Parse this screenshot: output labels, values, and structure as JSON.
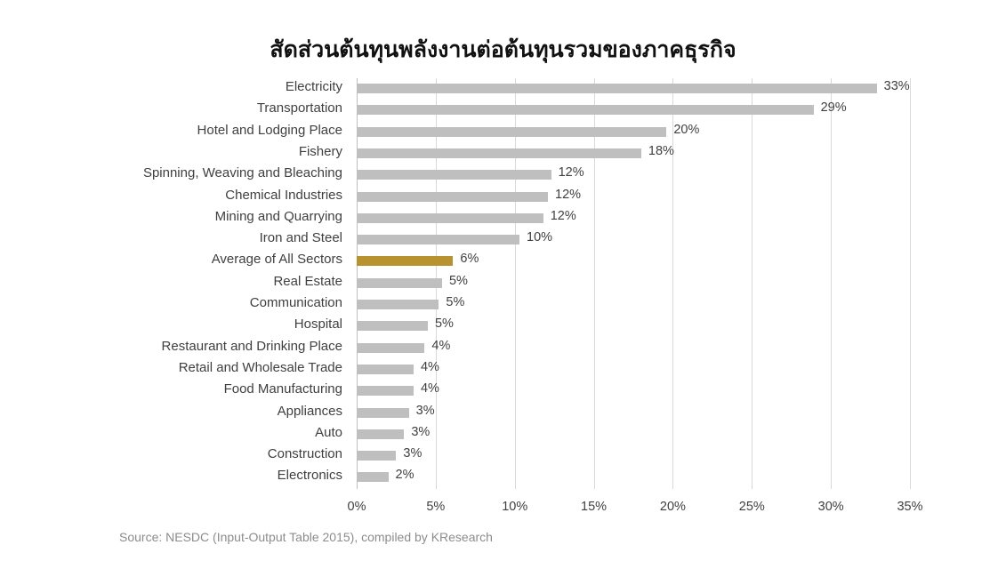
{
  "title": "สัดส่วนต้นทุนพลังงานต่อต้นทุนรวมของภาคธุรกิจ",
  "source": "Source: NESDC (Input-Output Table 2015), compiled by KResearch",
  "colors": {
    "bar": "#bfbfbf",
    "highlight": "#b8922e",
    "grid": "#d9d9d9"
  },
  "chart_data": {
    "type": "bar",
    "orientation": "horizontal",
    "title": "สัดส่วนต้นทุนพลังงานต่อต้นทุนรวมของภาคธุรกิจ",
    "xlabel": "",
    "ylabel": "",
    "xlim": [
      0,
      35
    ],
    "x_ticks": [
      "0%",
      "5%",
      "10%",
      "15%",
      "20%",
      "25%",
      "30%",
      "35%"
    ],
    "grid": true,
    "legend": null,
    "highlight_category": "Average of All Sectors",
    "categories": [
      "Electricity",
      "Transportation",
      "Hotel and Lodging Place",
      "Fishery",
      "Spinning, Weaving and Bleaching",
      "Chemical Industries",
      "Mining and Quarrying",
      "Iron and Steel",
      "Average of All Sectors",
      "Real Estate",
      "Communication",
      "Hospital",
      "Restaurant and Drinking Place",
      "Retail and Wholesale Trade",
      "Food Manufacturing",
      "Appliances",
      "Auto",
      "Construction",
      "Electronics"
    ],
    "values": [
      32.9,
      28.9,
      19.6,
      18.0,
      12.3,
      12.1,
      11.8,
      10.3,
      6.1,
      5.4,
      5.2,
      4.5,
      4.3,
      3.6,
      3.6,
      3.3,
      3.0,
      2.5,
      2.0
    ],
    "labels": [
      "33%",
      "29%",
      "20%",
      "18%",
      "12%",
      "12%",
      "12%",
      "10%",
      "6%",
      "5%",
      "5%",
      "5%",
      "4%",
      "4%",
      "4%",
      "3%",
      "3%",
      "3%",
      "2%"
    ],
    "source": "Source: NESDC (Input-Output Table 2015), compiled by KResearch"
  }
}
